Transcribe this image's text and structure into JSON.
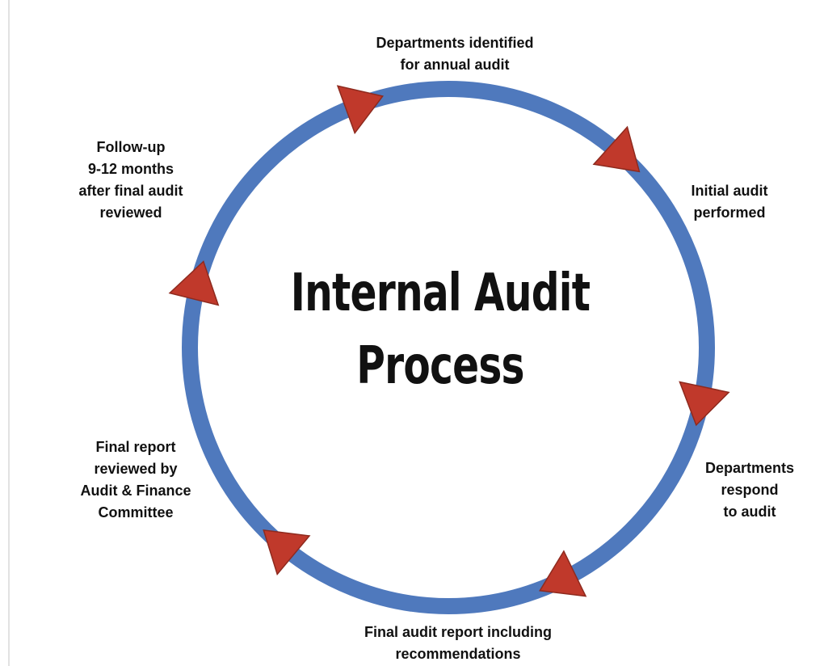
{
  "diagram": {
    "title_lines": [
      "Internal Audit",
      "Process"
    ],
    "steps": [
      {
        "id": "step-1",
        "text": "Departments identified\nfor annual audit"
      },
      {
        "id": "step-2",
        "text": "Initial audit\nperformed"
      },
      {
        "id": "step-3",
        "text": "Departments\nrespond\nto audit"
      },
      {
        "id": "step-4",
        "text": "Final audit report including\nrecommendations"
      },
      {
        "id": "step-5",
        "text": "Final report\nreviewed by\nAudit & Finance\nCommittee"
      },
      {
        "id": "step-6",
        "text": "Follow-up\n9-12 months\nafter final audit\nreviewed"
      }
    ],
    "colors": {
      "ring": "#4f79bd",
      "arrow": "#c0392b",
      "arrow_edge": "#8e2a1e",
      "text": "#111111"
    },
    "flow_direction": "clockwise"
  }
}
